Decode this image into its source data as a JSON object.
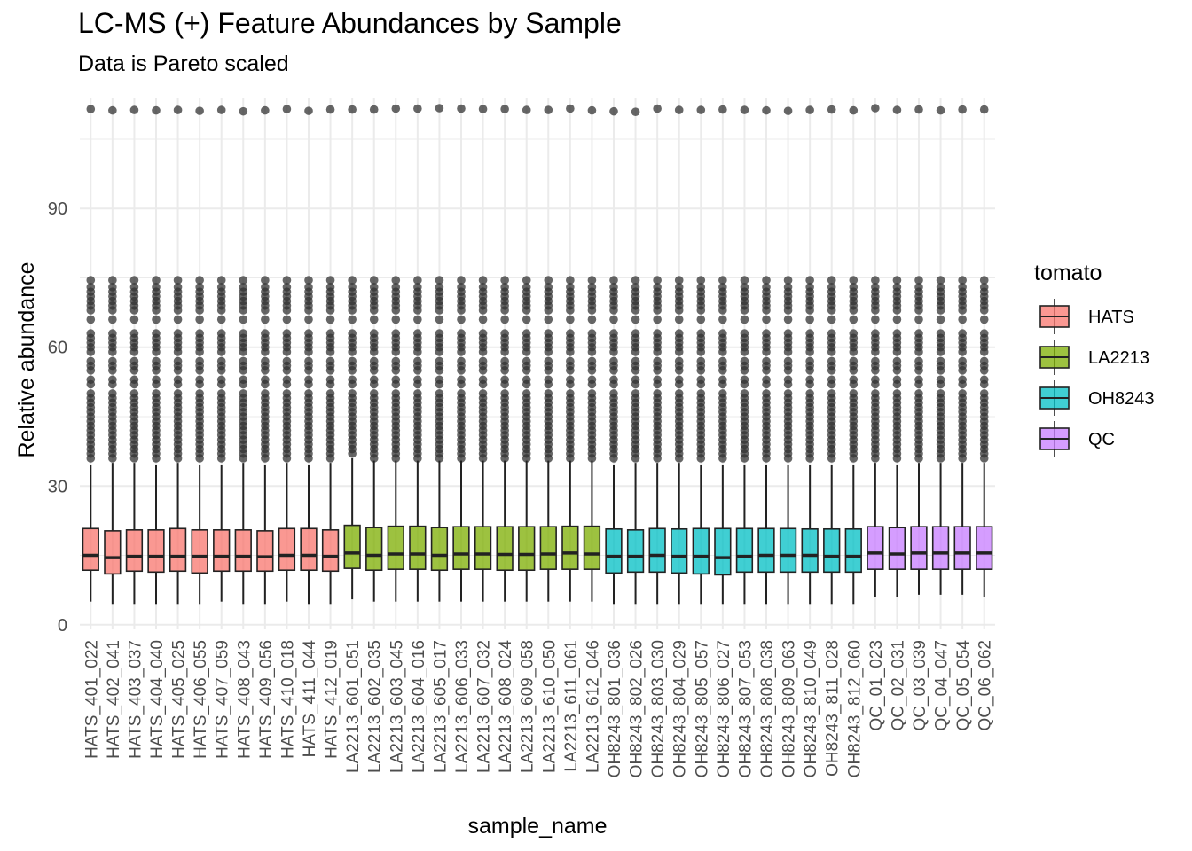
{
  "chart_data": {
    "type": "boxplot",
    "title": "LC-MS (+) Feature Abundances by Sample",
    "subtitle": "Data is Pareto scaled",
    "xlabel": "sample_name",
    "ylabel": "Relative abundance",
    "ylim": [
      -1,
      114
    ],
    "yticks": [
      0,
      30,
      60,
      90
    ],
    "grid": true,
    "legend": {
      "title": "tomato",
      "placement": "right",
      "entries": [
        {
          "name": "HATS",
          "color": "#F8766D"
        },
        {
          "name": "LA2213",
          "color": "#7CAE00"
        },
        {
          "name": "OH8243",
          "color": "#00BFC4"
        },
        {
          "name": "QC",
          "color": "#C77CFF"
        }
      ]
    },
    "categories": [
      "HATS_401_022",
      "HATS_402_041",
      "HATS_403_037",
      "HATS_404_040",
      "HATS_405_025",
      "HATS_406_055",
      "HATS_407_059",
      "HATS_408_043",
      "HATS_409_056",
      "HATS_410_018",
      "HATS_411_044",
      "HATS_412_019",
      "LA2213_601_051",
      "LA2213_602_035",
      "LA2213_603_045",
      "LA2213_604_016",
      "LA2213_605_017",
      "LA2213_606_033",
      "LA2213_607_032",
      "LA2213_608_024",
      "LA2213_609_058",
      "LA2213_610_050",
      "LA2213_611_061",
      "LA2213_612_046",
      "OH8243_801_036",
      "OH8243_802_026",
      "OH8243_803_030",
      "OH8243_804_029",
      "OH8243_805_057",
      "OH8243_806_027",
      "OH8243_807_053",
      "OH8243_808_038",
      "OH8243_809_063",
      "OH8243_810_049",
      "OH8243_811_028",
      "OH8243_812_060",
      "QC_01_023",
      "QC_02_031",
      "QC_03_039",
      "QC_04_047",
      "QC_05_054",
      "QC_06_062"
    ],
    "groups": [
      "HATS",
      "HATS",
      "HATS",
      "HATS",
      "HATS",
      "HATS",
      "HATS",
      "HATS",
      "HATS",
      "HATS",
      "HATS",
      "HATS",
      "LA2213",
      "LA2213",
      "LA2213",
      "LA2213",
      "LA2213",
      "LA2213",
      "LA2213",
      "LA2213",
      "LA2213",
      "LA2213",
      "LA2213",
      "LA2213",
      "OH8243",
      "OH8243",
      "OH8243",
      "OH8243",
      "OH8243",
      "OH8243",
      "OH8243",
      "OH8243",
      "OH8243",
      "OH8243",
      "OH8243",
      "OH8243",
      "QC",
      "QC",
      "QC",
      "QC",
      "QC",
      "QC"
    ],
    "whisker_low": [
      5.0,
      4.5,
      4.5,
      4.5,
      4.5,
      4.5,
      5.0,
      4.5,
      4.5,
      5.0,
      4.5,
      4.5,
      5.5,
      5.0,
      5.0,
      5.0,
      5.0,
      5.0,
      5.0,
      5.0,
      5.0,
      5.0,
      5.0,
      5.0,
      4.5,
      4.5,
      4.5,
      4.5,
      4.5,
      4.5,
      4.5,
      4.5,
      4.5,
      4.5,
      4.5,
      4.5,
      6.0,
      6.0,
      6.5,
      6.5,
      6.5,
      6.0
    ],
    "q1": [
      11.8,
      11.0,
      11.6,
      11.4,
      11.6,
      11.2,
      11.6,
      11.6,
      11.6,
      11.8,
      11.8,
      11.6,
      12.2,
      11.8,
      12.0,
      12.0,
      11.8,
      12.0,
      12.0,
      11.8,
      11.8,
      12.0,
      12.0,
      12.0,
      11.2,
      11.4,
      11.4,
      11.2,
      11.0,
      10.8,
      11.4,
      11.4,
      11.4,
      11.4,
      11.4,
      11.4,
      12.0,
      12.0,
      12.0,
      12.0,
      12.0,
      12.0
    ],
    "median": [
      15.0,
      14.5,
      14.8,
      14.8,
      14.8,
      14.8,
      14.8,
      14.8,
      14.7,
      15.0,
      15.0,
      14.8,
      15.5,
      15.0,
      15.3,
      15.3,
      15.0,
      15.3,
      15.3,
      15.2,
      15.2,
      15.3,
      15.5,
      15.3,
      14.8,
      14.8,
      15.0,
      14.8,
      14.8,
      14.5,
      14.8,
      15.0,
      15.0,
      15.0,
      14.8,
      14.8,
      15.5,
      15.3,
      15.5,
      15.5,
      15.5,
      15.5
    ],
    "q3": [
      20.8,
      20.3,
      20.5,
      20.5,
      20.8,
      20.5,
      20.5,
      20.5,
      20.3,
      20.8,
      20.8,
      20.5,
      21.5,
      21.0,
      21.3,
      21.3,
      21.0,
      21.2,
      21.2,
      21.2,
      21.2,
      21.2,
      21.3,
      21.3,
      20.7,
      20.5,
      20.8,
      20.7,
      20.8,
      20.8,
      20.8,
      20.8,
      20.8,
      20.7,
      20.7,
      20.7,
      21.2,
      21.0,
      21.2,
      21.2,
      21.2,
      21.2
    ],
    "whisker_high": [
      34.5,
      35.0,
      35.0,
      34.5,
      35.0,
      34.5,
      34.5,
      35.0,
      34.5,
      35.0,
      34.5,
      35.0,
      36.0,
      35.5,
      35.5,
      35.5,
      35.5,
      35.5,
      35.5,
      35.5,
      35.5,
      35.5,
      35.5,
      35.5,
      34.5,
      35.0,
      35.0,
      35.0,
      34.5,
      34.5,
      34.5,
      34.5,
      34.5,
      34.5,
      34.5,
      34.5,
      35.0,
      34.5,
      35.0,
      35.0,
      35.0,
      35.0
    ],
    "max_outlier": [
      111.5,
      111.2,
      111.3,
      111.2,
      111.3,
      111.1,
      111.3,
      111.0,
      111.2,
      111.5,
      111.1,
      111.4,
      111.4,
      111.4,
      111.6,
      111.6,
      111.7,
      111.6,
      111.5,
      111.5,
      111.3,
      111.3,
      111.6,
      111.2,
      111.0,
      110.9,
      111.6,
      111.3,
      111.3,
      111.4,
      111.3,
      111.2,
      111.1,
      111.3,
      111.4,
      111.2,
      111.7,
      111.3,
      111.4,
      111.2,
      111.4,
      111.4
    ],
    "outliers_common": [
      36,
      37,
      38,
      39,
      40,
      41,
      42,
      43,
      44,
      45,
      46,
      47,
      48,
      49,
      50,
      52,
      53,
      55,
      56,
      57,
      59,
      60,
      61,
      62,
      63,
      66,
      68,
      69,
      70,
      71,
      72,
      73,
      74.5
    ]
  }
}
